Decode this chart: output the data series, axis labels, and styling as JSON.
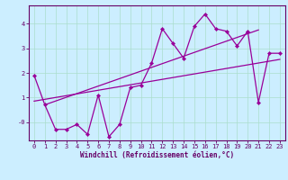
{
  "title": "",
  "xlabel": "Windchill (Refroidissement éolien,°C)",
  "ylabel": "",
  "bg_color": "#cceeff",
  "line_color": "#990099",
  "grid_color": "#aaddcc",
  "axis_color": "#660066",
  "x_data": [
    0,
    1,
    2,
    3,
    4,
    5,
    6,
    7,
    8,
    9,
    10,
    11,
    12,
    13,
    14,
    15,
    16,
    17,
    18,
    19,
    20,
    21,
    22,
    23
  ],
  "y_data": [
    1.9,
    0.7,
    -0.3,
    -0.3,
    -0.1,
    -0.5,
    1.1,
    -0.6,
    -0.1,
    1.4,
    1.5,
    2.4,
    3.8,
    3.2,
    2.6,
    3.9,
    4.4,
    3.8,
    3.7,
    3.1,
    3.7,
    0.8,
    2.8,
    2.8
  ],
  "trend1_x": [
    0,
    23
  ],
  "trend1_y": [
    0.85,
    2.55
  ],
  "trend2_x": [
    1,
    21
  ],
  "trend2_y": [
    0.7,
    3.75
  ],
  "ylim": [
    -0.75,
    4.75
  ],
  "xlim": [
    -0.5,
    23.5
  ],
  "yticks": [
    0,
    1,
    2,
    3,
    4
  ],
  "ytick_labels": [
    "-0",
    "1",
    "2",
    "3",
    "4"
  ],
  "xticks": [
    0,
    1,
    2,
    3,
    4,
    5,
    6,
    7,
    8,
    9,
    10,
    11,
    12,
    13,
    14,
    15,
    16,
    17,
    18,
    19,
    20,
    21,
    22,
    23
  ],
  "marker": "D",
  "markersize": 2.2,
  "linewidth": 0.9
}
